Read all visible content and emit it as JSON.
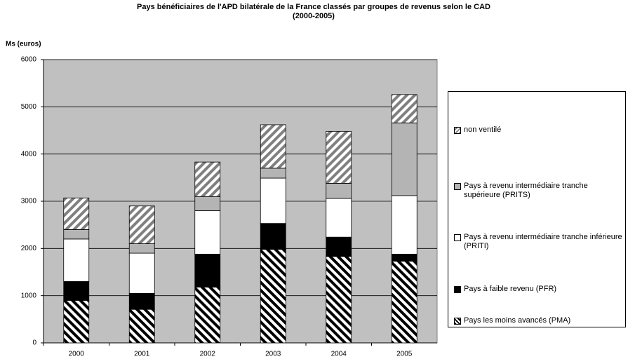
{
  "chart_data": {
    "type": "stacked_bar",
    "title": "Pays bénéficiaires de l'APD bilatérale de la France classés par groupes de revenus selon le CAD",
    "subtitle": "(2000-2005)",
    "y_label": "Ms (euros)",
    "categories": [
      "2000",
      "2001",
      "2002",
      "2003",
      "2004",
      "2005"
    ],
    "series": [
      {
        "name": "Pays les moins avancés (PMA)",
        "color": "#000000",
        "pattern": "hatch-down",
        "values": [
          900,
          710,
          1180,
          1980,
          1830,
          1730
        ]
      },
      {
        "name": "Pays à faible revenu (PFR)",
        "color": "#000000",
        "values": [
          400,
          340,
          700,
          550,
          410,
          150
        ]
      },
      {
        "name": "Pays à revenu intermédiaire tranche inférieure (PRITI)",
        "color": "#ffffff",
        "values": [
          900,
          850,
          920,
          960,
          820,
          1240
        ]
      },
      {
        "name": "Pays à revenu intermédiaire tranche supérieure (PRITS)",
        "color": "#b4b4b4",
        "values": [
          200,
          200,
          300,
          210,
          320,
          1540
        ]
      },
      {
        "name": "non ventilé",
        "color": "#808080",
        "pattern": "hatch-up",
        "values": [
          670,
          800,
          730,
          920,
          1100,
          600
        ]
      }
    ],
    "ylim": [
      0,
      6000
    ],
    "yticks": [
      0,
      1000,
      2000,
      3000,
      4000,
      5000,
      6000
    ],
    "grid": true,
    "background": "#c0c0c0",
    "legend": "right"
  }
}
